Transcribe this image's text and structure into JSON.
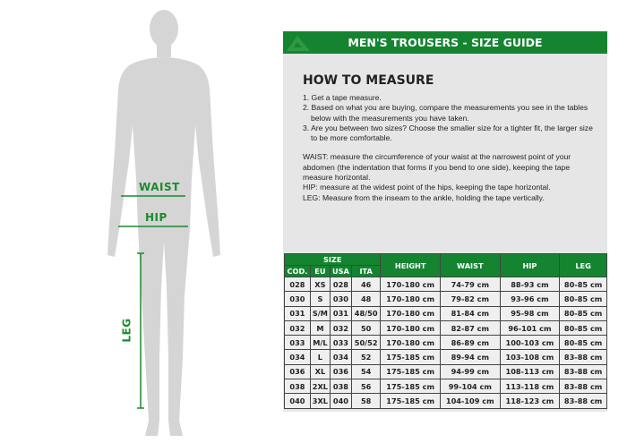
{
  "figure": {
    "waist_label": "WAIST",
    "hip_label": "HIP",
    "leg_label": "LEG"
  },
  "colors": {
    "accent": "#158431",
    "panel": "#e6e6e6"
  },
  "header": {
    "title": "MEN'S TROUSERS - SIZE GUIDE",
    "logo_icon": "brand-logo"
  },
  "how": {
    "title": "HOW TO MEASURE",
    "steps": [
      "1. Get a tape measure.",
      "2. Based on what you are buying, compare the measurements you see in the tables below with the measurements you have taken.",
      "3. Are you between two sizes? Choose the smaller size for a tighter fit, the larger size to be more comfortable."
    ],
    "waist": "WAIST: measure the circumference of your waist at the narrowest point of your abdomen (the indentation that forms if you bend to one side), keeping the tape measure horizontal.",
    "hip": "HIP: measure at the widest point of the hips, keeping the tape horizontal.",
    "leg": "LEG: Measure from the inseam to the ankle, holding the tape vertically."
  },
  "table": {
    "size_group": "SIZE",
    "headers": [
      "COD.",
      "EU",
      "USA",
      "ITA",
      "HEIGHT",
      "WAIST",
      "HIP",
      "LEG"
    ],
    "rows": [
      [
        "028",
        "XS",
        "028",
        "46",
        "170-180 cm",
        "74-79 cm",
        "88-93 cm",
        "80-85 cm"
      ],
      [
        "030",
        "S",
        "030",
        "48",
        "170-180 cm",
        "79-82 cm",
        "93-96 cm",
        "80-85 cm"
      ],
      [
        "031",
        "S/M",
        "031",
        "48/50",
        "170-180 cm",
        "81-84 cm",
        "95-98 cm",
        "80-85 cm"
      ],
      [
        "032",
        "M",
        "032",
        "50",
        "170-180 cm",
        "82-87 cm",
        "96-101 cm",
        "80-85 cm"
      ],
      [
        "033",
        "M/L",
        "033",
        "50/52",
        "170-180 cm",
        "86-89 cm",
        "100-103 cm",
        "80-85 cm"
      ],
      [
        "034",
        "L",
        "034",
        "52",
        "175-185 cm",
        "89-94 cm",
        "103-108 cm",
        "83-88 cm"
      ],
      [
        "036",
        "XL",
        "036",
        "54",
        "175-185 cm",
        "94-99 cm",
        "108-113 cm",
        "83-88 cm"
      ],
      [
        "038",
        "2XL",
        "038",
        "56",
        "175-185 cm",
        "99-104 cm",
        "113-118 cm",
        "83-88 cm"
      ],
      [
        "040",
        "3XL",
        "040",
        "58",
        "175-185 cm",
        "104-109 cm",
        "118-123 cm",
        "83-88 cm"
      ]
    ]
  }
}
